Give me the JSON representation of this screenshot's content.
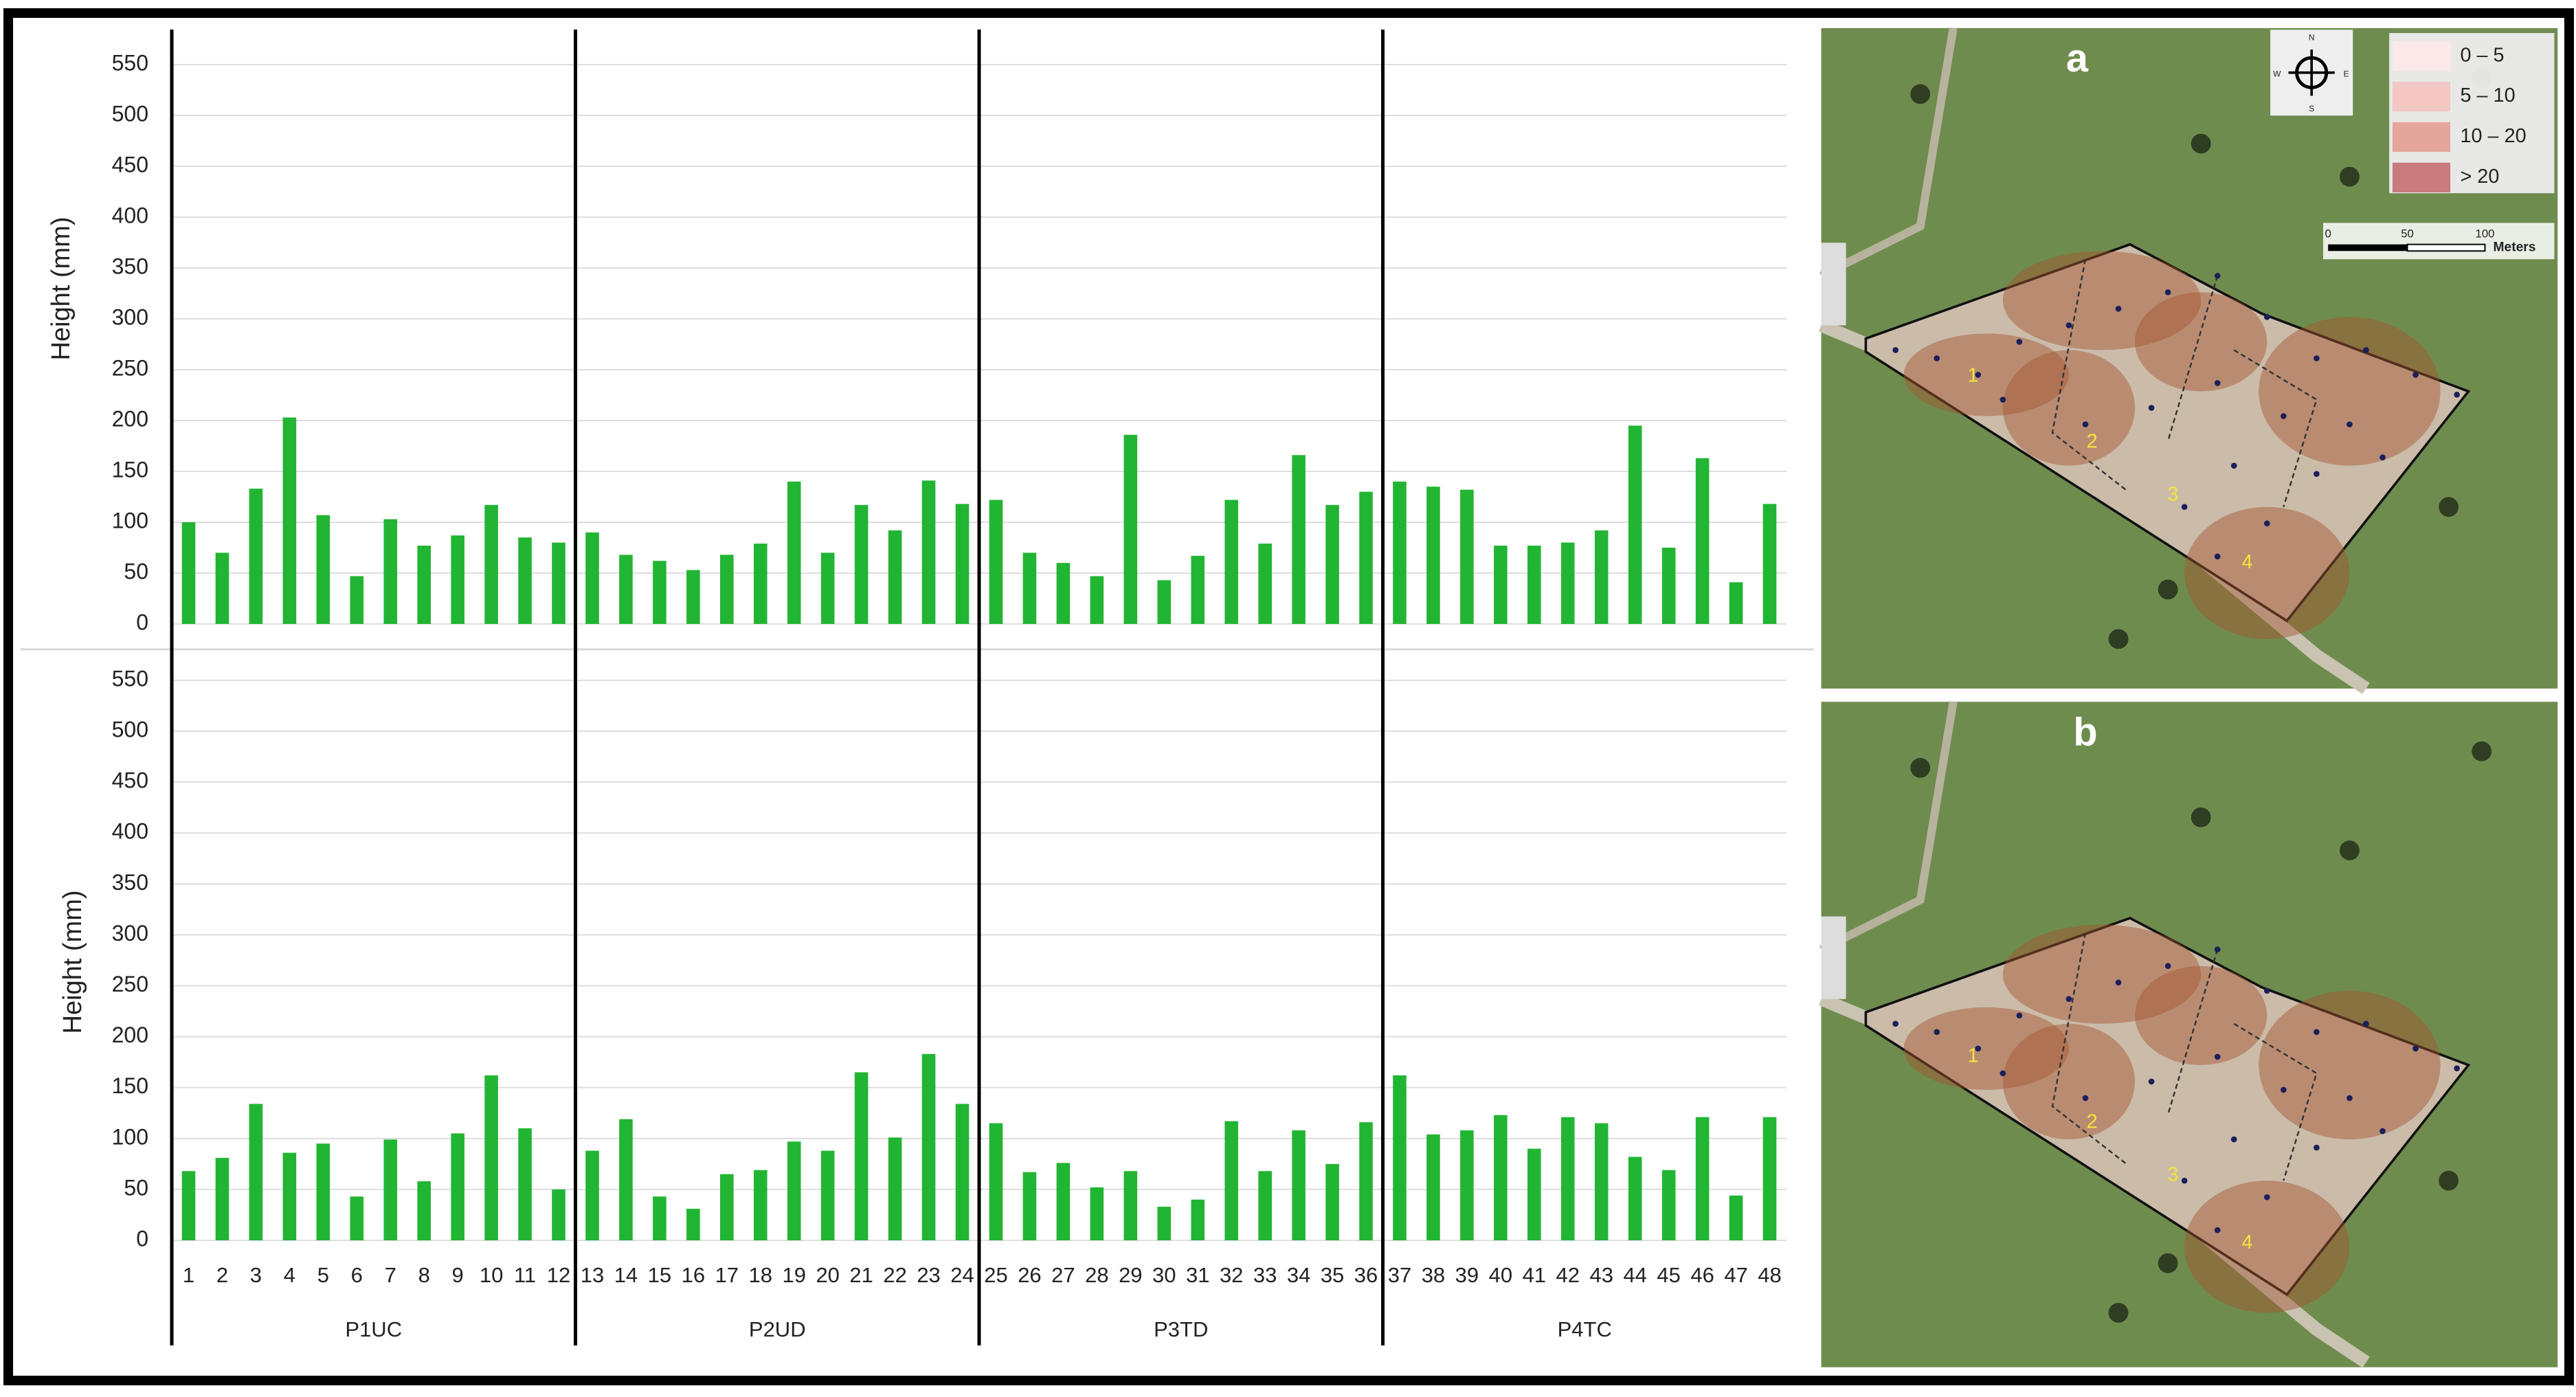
{
  "chart_data": [
    {
      "type": "bar",
      "y_label": "Height (mm)",
      "color": "#22b533",
      "ylim": [
        0,
        550
      ],
      "yticks": [
        0,
        50,
        100,
        150,
        200,
        250,
        300,
        350,
        400,
        450,
        500,
        550
      ],
      "grid": true,
      "values": [
        100,
        70,
        133,
        203,
        107,
        47,
        103,
        77,
        87,
        117,
        85,
        80,
        90,
        68,
        62,
        53,
        68,
        79,
        140,
        70,
        117,
        92,
        141,
        118,
        122,
        70,
        60,
        47,
        186,
        43,
        67,
        122,
        79,
        166,
        117,
        130,
        140,
        135,
        132,
        77,
        77,
        80,
        92,
        195,
        75,
        163,
        41,
        118
      ]
    },
    {
      "type": "bar",
      "y_label": "Height (mm)",
      "color": "#22b533",
      "ylim": [
        0,
        550
      ],
      "yticks": [
        0,
        50,
        100,
        150,
        200,
        250,
        300,
        350,
        400,
        450,
        500,
        550
      ],
      "grid": true,
      "categories": [
        "1",
        "2",
        "3",
        "4",
        "5",
        "6",
        "7",
        "8",
        "9",
        "10",
        "11",
        "12",
        "13",
        "14",
        "15",
        "16",
        "17",
        "18",
        "19",
        "20",
        "21",
        "22",
        "23",
        "24",
        "25",
        "26",
        "27",
        "28",
        "29",
        "30",
        "31",
        "32",
        "33",
        "34",
        "35",
        "36",
        "37",
        "38",
        "39",
        "40",
        "41",
        "42",
        "43",
        "44",
        "45",
        "46",
        "47",
        "48"
      ],
      "groups": [
        "P1UC",
        "P2UD",
        "P3TD",
        "P4TC"
      ],
      "values": [
        68,
        81,
        134,
        86,
        95,
        43,
        99,
        58,
        105,
        162,
        110,
        50,
        88,
        119,
        43,
        31,
        65,
        69,
        97,
        88,
        165,
        101,
        183,
        134,
        115,
        67,
        76,
        52,
        68,
        33,
        40,
        117,
        68,
        108,
        75,
        116,
        162,
        104,
        108,
        123,
        90,
        121,
        115,
        82,
        69,
        121,
        44,
        121
      ]
    }
  ],
  "maps": [
    {
      "label": "a",
      "zones": [
        "1",
        "2",
        "3",
        "4"
      ]
    },
    {
      "label": "b",
      "zones": [
        "1",
        "2",
        "3",
        "4"
      ]
    }
  ],
  "map_legend": {
    "items": [
      "0 – 5",
      "5 – 10",
      "10 – 20",
      "> 20"
    ],
    "colors": [
      "#fbe9ea",
      "#f3c7c4",
      "#e3a59c",
      "#c97a7c"
    ]
  },
  "scale_bar": {
    "labels": [
      "0",
      "50",
      "100"
    ],
    "unit": "Meters"
  },
  "compass": [
    "N",
    "E",
    "S",
    "W"
  ]
}
